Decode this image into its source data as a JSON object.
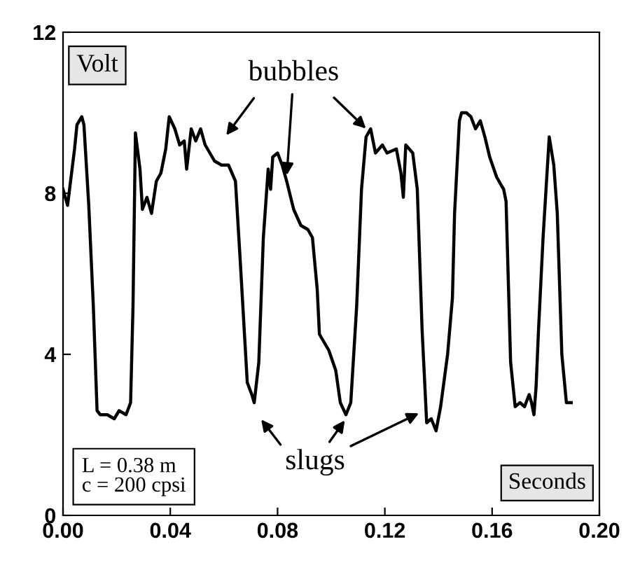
{
  "chart_data": {
    "type": "line",
    "xlabel": "Seconds",
    "ylabel": "Volt",
    "annotations": [
      {
        "text": "bubbles",
        "x": 0.0834,
        "y": 8.4
      },
      {
        "text": "slugs",
        "x": 0.1055,
        "y": 2.4
      },
      "L = 0.38 m\nc = 200 cpsi"
    ],
    "series": [
      {
        "color": "#000000",
        "x": [
          0.0,
          0.0017,
          0.0043,
          0.0052,
          0.007,
          0.0078,
          0.0096,
          0.0113,
          0.0127,
          0.0139,
          0.0165,
          0.0191,
          0.0209,
          0.0235,
          0.0252,
          0.0261,
          0.027,
          0.0287,
          0.0296,
          0.0313,
          0.033,
          0.0348,
          0.0365,
          0.0383,
          0.0396,
          0.0417,
          0.0435,
          0.0452,
          0.0461,
          0.0478,
          0.0495,
          0.0513,
          0.053,
          0.0565,
          0.0591,
          0.0617,
          0.0643,
          0.0661,
          0.0687,
          0.0704,
          0.0713,
          0.073,
          0.0747,
          0.0765,
          0.0774,
          0.0782,
          0.08,
          0.0817,
          0.0834,
          0.086,
          0.0887,
          0.0913,
          0.093,
          0.0948,
          0.0956,
          0.0991,
          0.1017,
          0.1034,
          0.1055,
          0.1073,
          0.1095,
          0.1113,
          0.113,
          0.1147,
          0.1165,
          0.1191,
          0.1208,
          0.1243,
          0.126,
          0.1269,
          0.1278,
          0.1304,
          0.1321,
          0.1339,
          0.1356,
          0.1373,
          0.1391,
          0.1408,
          0.1434,
          0.1452,
          0.146,
          0.1478,
          0.1486,
          0.1504,
          0.1521,
          0.1538,
          0.1556,
          0.1573,
          0.1591,
          0.1617,
          0.1634,
          0.1643,
          0.1652,
          0.1669,
          0.1686,
          0.1704,
          0.1721,
          0.1738,
          0.1747,
          0.1756,
          0.1764,
          0.1773,
          0.179,
          0.1813,
          0.183,
          0.1843,
          0.186,
          0.1877,
          0.1895
        ],
        "values": [
          8.1,
          7.7,
          9.1,
          9.7,
          9.9,
          9.7,
          7.7,
          5.2,
          2.6,
          2.5,
          2.5,
          2.4,
          2.6,
          2.5,
          2.8,
          5.2,
          9.5,
          8.6,
          7.6,
          7.9,
          7.5,
          8.3,
          8.5,
          9.1,
          9.9,
          9.6,
          9.2,
          9.3,
          8.6,
          9.6,
          9.3,
          9.6,
          9.2,
          8.8,
          8.7,
          8.7,
          8.3,
          6.3,
          3.3,
          3.0,
          2.8,
          3.8,
          6.9,
          8.6,
          8.1,
          8.9,
          9.0,
          8.7,
          8.3,
          7.6,
          7.2,
          7.1,
          6.9,
          5.6,
          4.5,
          4.1,
          3.6,
          2.8,
          2.5,
          2.8,
          5.2,
          8.1,
          9.4,
          9.6,
          9.0,
          9.2,
          9.0,
          9.1,
          8.5,
          7.9,
          9.2,
          9.0,
          8.1,
          4.6,
          2.3,
          2.4,
          2.1,
          2.7,
          4.0,
          5.4,
          7.5,
          9.8,
          10.0,
          10.0,
          9.9,
          9.6,
          9.8,
          9.4,
          8.9,
          8.4,
          8.2,
          8.1,
          7.8,
          3.8,
          2.7,
          2.8,
          2.7,
          3.0,
          2.8,
          2.5,
          3.2,
          4.6,
          6.9,
          9.4,
          8.7,
          7.5,
          4.0,
          2.8,
          2.8
        ]
      }
    ],
    "xlim": [
      0,
      0.2
    ],
    "xticks": [
      {
        "value": 0,
        "label": "0.00"
      },
      0.04,
      0.08,
      0.12,
      0.16,
      {
        "value": 0.2,
        "label": "0.20"
      }
    ],
    "ylim": [
      0,
      12
    ],
    "yticks": [
      0,
      4,
      8,
      12
    ],
    "grid": false,
    "legend": false,
    "marker": "none",
    "line_style": "solid"
  }
}
